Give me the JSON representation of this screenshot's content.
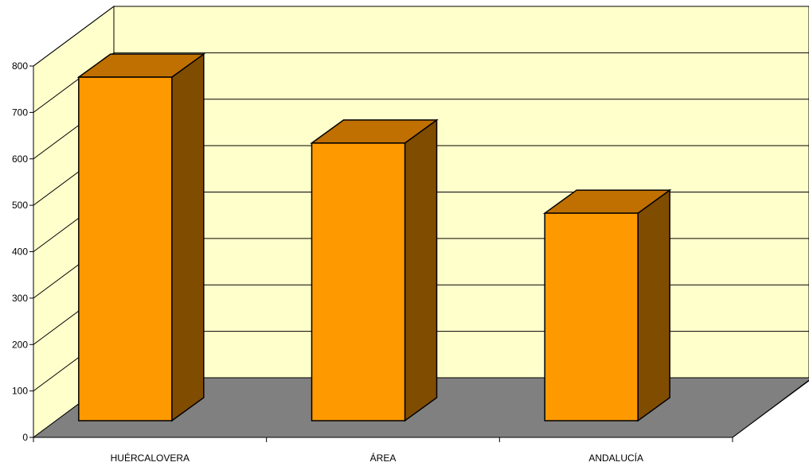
{
  "chart_data": {
    "type": "bar",
    "style": "3d-column",
    "title": "",
    "xlabel": "",
    "ylabel": "",
    "categories": [
      "HUÉRCALOVERA",
      "ÁREA",
      "ANDALUCÍA"
    ],
    "values": [
      740,
      598,
      447
    ],
    "ylim": [
      0,
      800
    ],
    "yticks": [
      "0",
      "100",
      "200",
      "300",
      "400",
      "500",
      "600",
      "700",
      "800"
    ],
    "grid": true,
    "legend": "none",
    "colors": {
      "bar_front": "#FF9900",
      "bar_top": "#C07000",
      "bar_side": "#804C00",
      "back_wall": "#FFFFCC",
      "side_wall": "#FFFFCC",
      "floor": "#808080",
      "outline": "#000000"
    }
  }
}
